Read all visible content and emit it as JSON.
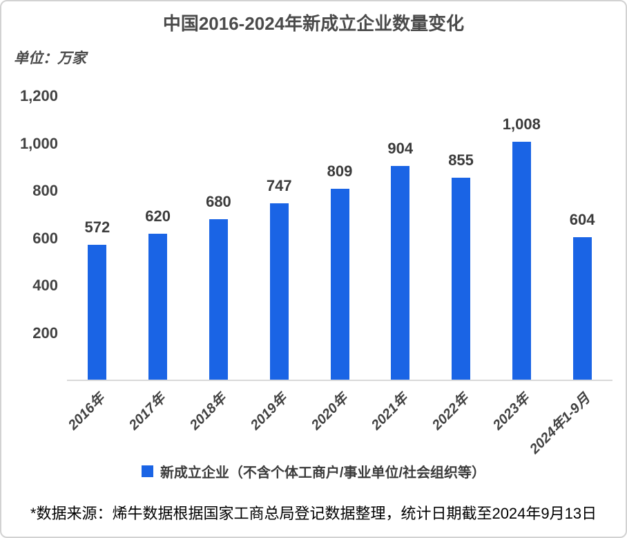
{
  "header": {
    "title": "中国2016-2024年新成立企业数量变化",
    "unit_label": "单位：万家"
  },
  "legend": {
    "label": "新成立企业（不含个体工商户/事业单位/社会组织等）"
  },
  "footer": {
    "text": "*数据来源：烯牛数据根据国家工商总局登记数据整理，统计日期截至2024年9月13日"
  },
  "colors": {
    "bar": "#1a64e5",
    "axis": "#d9d9d9",
    "text_dark": "#3b3b3b",
    "text_gray": "#4a4a4a"
  },
  "chart_data": {
    "type": "bar",
    "title": "中国2016-2024年新成立企业数量变化",
    "unit": "万家",
    "categories": [
      "2016年",
      "2017年",
      "2018年",
      "2019年",
      "2020年",
      "2021年",
      "2022年",
      "2023年",
      "2024年1-9月"
    ],
    "values": [
      572,
      620,
      680,
      747,
      809,
      904,
      855,
      1008,
      604
    ],
    "value_labels": [
      "572",
      "620",
      "680",
      "747",
      "809",
      "904",
      "855",
      "1,008",
      "604"
    ],
    "y_ticks": [
      1200,
      1000,
      800,
      600,
      400,
      200
    ],
    "y_tick_labels": [
      "1,200",
      "1,000",
      "800",
      "600",
      "400",
      "200"
    ],
    "ylim": [
      0,
      1200
    ],
    "grid": false,
    "xlabel": "",
    "ylabel": "单位：万家",
    "legend": [
      "新成立企业（不含个体工商户/事业单位/社会组织等）"
    ],
    "legend_position": "bottom",
    "bar_color": "#1a64e5"
  }
}
